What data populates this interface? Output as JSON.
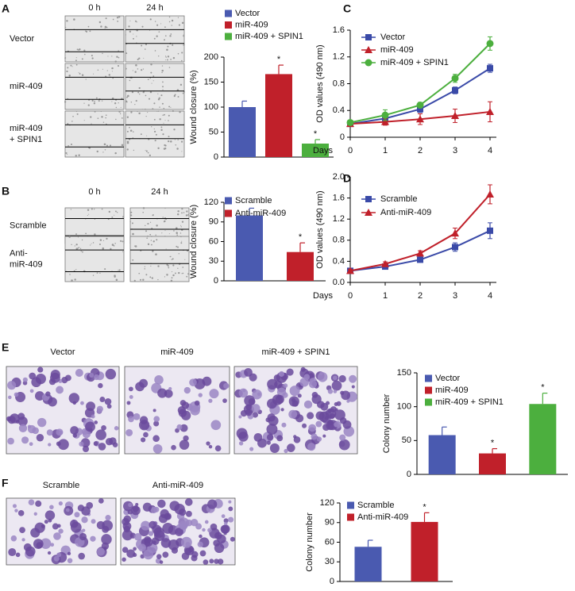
{
  "letters": [
    "A",
    "B",
    "C",
    "D",
    "E",
    "F"
  ],
  "image_panels": [
    {
      "columns": [
        "0 h",
        "24 h"
      ],
      "rows": [
        [
          "Vector"
        ],
        [
          "miR-409"
        ],
        [
          "miR-409",
          "+ SPIN1"
        ]
      ]
    },
    {
      "columns": [
        "0 h",
        "24 h"
      ],
      "rows": [
        [
          "Scramble"
        ],
        [
          "Anti-",
          "miR-409"
        ]
      ]
    },
    {
      "columns": [
        "Vector",
        "miR-409",
        "miR-409 + SPIN1"
      ]
    },
    {
      "columns": [
        "Scramble",
        "Anti-miR-409"
      ]
    }
  ],
  "chart_data": [
    {
      "type": "bar",
      "y_label": "Wound closure (%)",
      "categories": [
        "Vector",
        "miR-409",
        "miR-409 + SPIN1"
      ],
      "values": [
        100,
        166,
        27
      ],
      "errors": [
        12,
        18,
        8
      ],
      "significance": [
        null,
        "*",
        "*"
      ],
      "colors": [
        "#4a5ab0",
        "#c0202a",
        "#4caf3e"
      ],
      "ylim": [
        0,
        200
      ],
      "yticks": [
        0,
        50,
        100,
        150,
        200
      ]
    },
    {
      "type": "line",
      "x_label": "Days",
      "y_label": "OD values (490 nm)",
      "x": [
        0,
        1,
        2,
        3,
        4
      ],
      "xlim": [
        0,
        4
      ],
      "xticks": [
        0,
        1,
        2,
        3,
        4
      ],
      "ylim": [
        0,
        1.6
      ],
      "yticks": [
        0,
        {
          "value": 0.4,
          "label": "0.4"
        },
        {
          "value": 0.8,
          "label": "0.8"
        },
        {
          "value": 1.2,
          "label": "1.2"
        },
        {
          "value": 1.6,
          "label": "1.6"
        }
      ],
      "series": [
        {
          "name": "Vector",
          "color": "#3a4aa8",
          "marker": "square",
          "values": [
            0.2,
            0.28,
            0.42,
            0.7,
            1.03
          ],
          "errors": [
            0.03,
            0.04,
            0.05,
            0.05,
            0.06
          ]
        },
        {
          "name": "miR-409",
          "color": "#c0202a",
          "marker": "triangle",
          "values": [
            0.2,
            0.23,
            0.27,
            0.32,
            0.38
          ],
          "errors": [
            0.03,
            0.05,
            0.08,
            0.1,
            0.15
          ]
        },
        {
          "name": "miR-409 + SPIN1",
          "color": "#4caf3e",
          "marker": "circle",
          "values": [
            0.22,
            0.33,
            0.48,
            0.88,
            1.4
          ],
          "errors": [
            0.03,
            0.08,
            0.04,
            0.06,
            0.1
          ]
        }
      ]
    },
    {
      "type": "bar",
      "y_label": "Wound closure (%)",
      "categories": [
        "Scramble",
        "Anti-miR-409"
      ],
      "values": [
        100,
        44
      ],
      "errors": [
        11,
        14
      ],
      "significance": [
        null,
        "*"
      ],
      "colors": [
        "#4a5ab0",
        "#c0202a"
      ],
      "ylim": [
        0,
        120
      ],
      "yticks": [
        0,
        30,
        60,
        90,
        120
      ]
    },
    {
      "type": "line",
      "x_label": "Days",
      "y_label": "OD values (490 nm)",
      "x": [
        0,
        1,
        2,
        3,
        4
      ],
      "xlim": [
        0,
        4
      ],
      "xticks": [
        0,
        1,
        2,
        3,
        4
      ],
      "ylim": [
        0,
        2.0
      ],
      "yticks": [
        {
          "value": 0,
          "label": "0.0"
        },
        {
          "value": 0.4,
          "label": "0.4"
        },
        {
          "value": 0.8,
          "label": "0.8"
        },
        {
          "value": 1.2,
          "label": "1.2"
        },
        {
          "value": 1.6,
          "label": "1.6"
        },
        {
          "value": 2.0,
          "label": "2.0"
        }
      ],
      "series": [
        {
          "name": "Scramble",
          "color": "#3a4aa8",
          "marker": "square",
          "values": [
            0.22,
            0.3,
            0.43,
            0.67,
            0.98
          ],
          "errors": [
            0.03,
            0.03,
            0.04,
            0.08,
            0.15
          ]
        },
        {
          "name": "Anti-miR-409",
          "color": "#c0202a",
          "marker": "triangle",
          "values": [
            0.22,
            0.35,
            0.55,
            0.93,
            1.67
          ],
          "errors": [
            0.03,
            0.04,
            0.05,
            0.1,
            0.18
          ]
        }
      ]
    },
    {
      "type": "bar",
      "y_label": "Colony number",
      "categories": [
        "Vector",
        "miR-409",
        "miR-409 + SPIN1"
      ],
      "values": [
        58,
        31,
        104
      ],
      "errors": [
        12,
        7,
        16
      ],
      "significance": [
        null,
        "*",
        "*"
      ],
      "colors": [
        "#4a5ab0",
        "#c0202a",
        "#4caf3e"
      ],
      "ylim": [
        0,
        150
      ],
      "yticks": [
        0,
        50,
        100,
        150
      ]
    },
    {
      "type": "bar",
      "y_label": "Colony number",
      "categories": [
        "Scramble",
        "Anti-miR-409"
      ],
      "values": [
        53,
        91
      ],
      "errors": [
        10,
        14
      ],
      "significance": [
        null,
        "*"
      ],
      "colors": [
        "#4a5ab0",
        "#c0202a"
      ],
      "ylim": [
        0,
        120
      ],
      "yticks": [
        0,
        30,
        60,
        90,
        120
      ]
    }
  ]
}
